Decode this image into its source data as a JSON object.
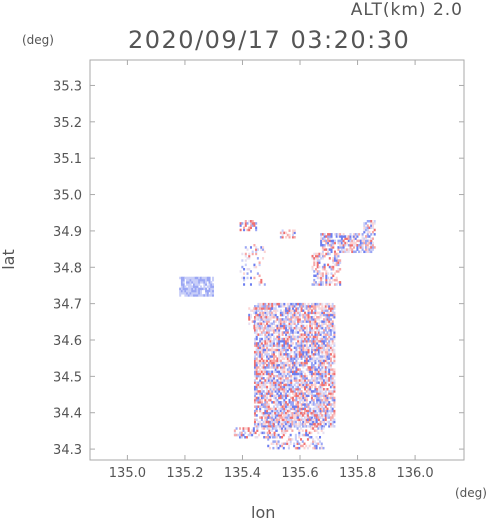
{
  "header": {
    "altitude": "ALT(km) 2.0",
    "timestamp": "2020/09/17 03:20:30",
    "y_unit": "(deg)",
    "x_unit": "(deg)"
  },
  "chart_data": {
    "type": "heatmap",
    "title": "2020/09/17 03:20:30",
    "xlabel": "lon",
    "ylabel": "lat",
    "xlim": [
      134.87,
      136.17
    ],
    "ylim": [
      34.27,
      35.37
    ],
    "x_ticks": [
      "135.0",
      "135.2",
      "135.4",
      "135.6",
      "135.8",
      "136.0"
    ],
    "y_ticks": [
      "34.3",
      "34.4",
      "34.5",
      "34.6",
      "34.7",
      "34.8",
      "34.9",
      "35.0",
      "35.1",
      "35.2",
      "35.3"
    ],
    "grid": false,
    "colors": {
      "positive": "#f07070",
      "negative": "#6d7ef0",
      "neutral": "#e8e0f0"
    },
    "regions": [
      {
        "lon": [
          135.44,
          135.72
        ],
        "lat": [
          34.36,
          34.7
        ],
        "density": 0.75
      },
      {
        "lon": [
          135.48,
          135.68
        ],
        "lat": [
          34.3,
          34.4
        ],
        "density": 0.35
      },
      {
        "lon": [
          135.37,
          135.52
        ],
        "lat": [
          34.33,
          34.36
        ],
        "density": 0.45
      },
      {
        "lon": [
          135.39,
          135.45
        ],
        "lat": [
          34.9,
          34.93
        ],
        "density": 0.55
      },
      {
        "lon": [
          135.67,
          135.85
        ],
        "lat": [
          34.84,
          34.89
        ],
        "density": 0.65
      },
      {
        "lon": [
          135.64,
          135.74
        ],
        "lat": [
          34.75,
          34.84
        ],
        "density": 0.45
      },
      {
        "lon": [
          135.53,
          135.58
        ],
        "lat": [
          34.88,
          34.9
        ],
        "density": 0.5
      },
      {
        "lon": [
          135.39,
          135.48
        ],
        "lat": [
          34.75,
          34.87
        ],
        "density": 0.18
      },
      {
        "lon": [
          135.82,
          135.86
        ],
        "lat": [
          34.84,
          34.93
        ],
        "density": 0.55
      },
      {
        "lon": [
          135.18,
          135.3
        ],
        "lat": [
          34.72,
          34.77
        ],
        "density": 0.85
      },
      {
        "lon": [
          135.42,
          135.5
        ],
        "lat": [
          34.63,
          34.69
        ],
        "density": 0.35
      }
    ]
  }
}
